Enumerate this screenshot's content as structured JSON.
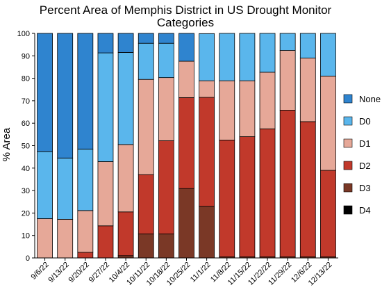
{
  "chart_data": {
    "type": "bar",
    "stacked": true,
    "title_lines": [
      "Percent Area of Memphis District in US Drought Monitor",
      "Categories"
    ],
    "xlabel": "",
    "ylabel": "% Area",
    "ylim": [
      0,
      100
    ],
    "yticks": [
      0,
      10,
      20,
      30,
      40,
      50,
      60,
      70,
      80,
      90,
      100
    ],
    "categories": [
      "9/6/22",
      "9/13/22",
      "9/20/22",
      "9/27/22",
      "10/4/22",
      "10/11/22",
      "10/18/22",
      "10/25/22",
      "11/1/22",
      "11/8/22",
      "11/15/22",
      "11/22/22",
      "11/29/22",
      "12/6/22",
      "12/13/22"
    ],
    "legend_position": "right",
    "grid": false,
    "series": [
      {
        "name": "D4",
        "color": "#000000",
        "values": [
          0,
          0,
          0,
          0,
          0,
          0,
          0,
          0,
          0,
          0,
          0,
          0,
          0,
          0,
          0
        ]
      },
      {
        "name": "D3",
        "color": "#7a3826",
        "values": [
          0,
          0,
          0,
          0,
          1,
          10.7,
          10.7,
          30.9,
          23,
          0.5,
          0.5,
          0.5,
          0.5,
          0.5,
          0.5
        ]
      },
      {
        "name": "D2",
        "color": "#c1392b",
        "values": [
          0,
          0,
          2.5,
          14.3,
          19.5,
          26.4,
          41.5,
          40.5,
          48.5,
          52,
          53.5,
          57,
          65.3,
          60.2,
          38.5
        ]
      },
      {
        "name": "D1",
        "color": "#e6a898",
        "values": [
          17.5,
          17.2,
          18.6,
          28.6,
          30,
          42.4,
          28.1,
          16.2,
          7.4,
          26.4,
          24.9,
          25.2,
          26.6,
          28.3,
          42
        ]
      },
      {
        "name": "D0",
        "color": "#5ab6ec",
        "values": [
          29.9,
          27.3,
          27.4,
          48.4,
          41,
          16.1,
          15.3,
          0,
          21,
          21.1,
          21.1,
          17.3,
          7.6,
          11,
          19
        ]
      },
      {
        "name": "None",
        "color": "#2f84cf",
        "values": [
          52.6,
          55.5,
          51.5,
          8.7,
          8.5,
          4.4,
          4.4,
          12.4,
          0,
          0,
          0,
          0,
          0,
          0,
          0
        ]
      }
    ],
    "legend_order": [
      "None",
      "D0",
      "D1",
      "D2",
      "D3",
      "D4"
    ]
  }
}
